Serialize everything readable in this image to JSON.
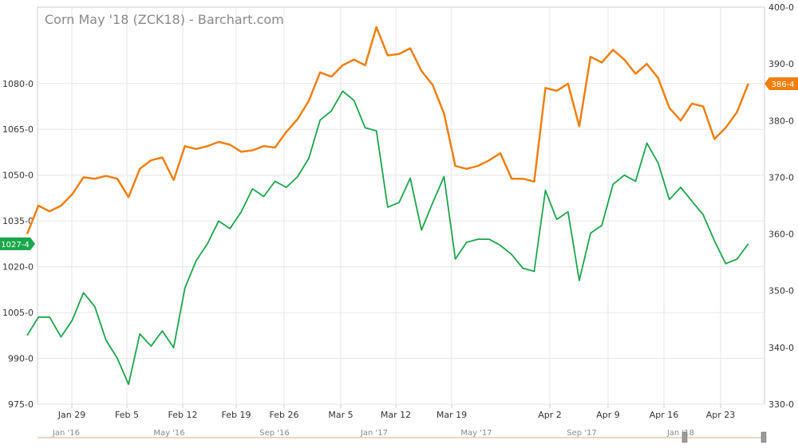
{
  "chart_data": {
    "type": "line",
    "title": "Corn May '18 (ZCK18) - Barchart.com",
    "x_tick_labels": [
      "Jan 29",
      "Feb 5",
      "Feb 12",
      "Feb 19",
      "Feb 26",
      "Mar 5",
      "Mar 12",
      "Mar 19",
      "Apr 2",
      "Apr 9",
      "Apr 16",
      "Apr 23"
    ],
    "left_axis": {
      "ticks": [
        "975-0",
        "990-0",
        "1005-0",
        "1020-0",
        "1035-0",
        "1050-0",
        "1065-0",
        "1080-0"
      ],
      "ylim": [
        975,
        1105
      ]
    },
    "right_axis": {
      "ticks": [
        "330-0",
        "340-0",
        "350-0",
        "360-0",
        "370-0",
        "380-0",
        "390-0",
        "400-0"
      ],
      "ylim": [
        330,
        400
      ]
    },
    "series": [
      {
        "axis": "left",
        "color": "#1aa64a",
        "last_label": "1027-4",
        "values": [
          997.5,
          1003.5,
          1003.5,
          997,
          1002.5,
          1011.5,
          1007,
          996,
          990,
          981.5,
          998,
          994,
          999,
          993.5,
          1013,
          1022,
          1027.5,
          1035,
          1032.5,
          1038,
          1045.5,
          1043,
          1048,
          1046,
          1049.5,
          1055.5,
          1068,
          1071,
          1077.5,
          1074.5,
          1065.5,
          1064.5,
          1039.5,
          1041,
          1049,
          1032,
          1041,
          1049.5,
          1022.5,
          1028,
          1029,
          1029,
          1027,
          1024,
          1019.5,
          1018.5,
          1045,
          1035.5,
          1038,
          1015.5,
          1031,
          1033.5,
          1047,
          1050,
          1048,
          1060.5,
          1054,
          1042,
          1046,
          1041.5,
          1037,
          1028.5,
          1021,
          1022.5,
          1027.5
        ]
      },
      {
        "axis": "right",
        "color": "#f07f10",
        "last_label": "386-4",
        "values": [
          360,
          365,
          364,
          365,
          367,
          370,
          369.75,
          370.25,
          369.75,
          366.5,
          371.5,
          373,
          373.5,
          369.5,
          375.5,
          375,
          375.5,
          376.25,
          375.75,
          374.5,
          374.75,
          375.5,
          375.25,
          378,
          380.25,
          383.5,
          388.5,
          387.75,
          389.75,
          390.75,
          389.75,
          396.5,
          391.5,
          391.75,
          392.75,
          388.75,
          386.25,
          381.25,
          372,
          371.5,
          372,
          373,
          374.25,
          369.75,
          369.75,
          369.25,
          385.75,
          385.25,
          386.5,
          379,
          391.25,
          390.25,
          392.5,
          390.75,
          388.25,
          390,
          387.5,
          382.25,
          380,
          383,
          382.5,
          376.75,
          378.75,
          381.5,
          386.5
        ]
      }
    ],
    "navigator": {
      "labels": [
        "Jan '16",
        "May '16",
        "Sep '16",
        "Jan '17",
        "May '17",
        "Sep '17",
        "Jan '18"
      ]
    }
  }
}
